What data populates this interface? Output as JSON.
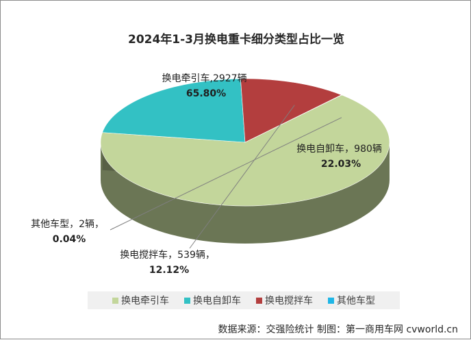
{
  "chart_data": {
    "type": "pie",
    "title": "2024年1-3月换电重卡细分类型占比一览",
    "slices": [
      {
        "name": "换电牵引车",
        "label": "换电牵引车,2927辆",
        "percent_label": "65.80%",
        "value": 2927,
        "percent": 65.8,
        "color": "#c3d69b"
      },
      {
        "name": "换电自卸车",
        "label": "换电自卸车，980辆",
        "percent_label": "22.03%",
        "value": 980,
        "percent": 22.03,
        "color": "#33c1c4"
      },
      {
        "name": "换电搅拌车",
        "label": "换电搅拌车，539辆，",
        "percent_label": "12.12%",
        "value": 539,
        "percent": 12.12,
        "color": "#b33e3e"
      },
      {
        "name": "其他车型",
        "label": "其他车型，2辆，",
        "percent_label": "0.04%",
        "value": 2,
        "percent": 0.04,
        "color": "#1fb6e6"
      }
    ],
    "legend": [
      "换电牵引车",
      "换电自卸车",
      "换电搅拌车",
      "其他车型"
    ],
    "legend_position": "bottom"
  },
  "source": "数据来源：交强险统计  制图：第一商用车网 cvworld.cn"
}
